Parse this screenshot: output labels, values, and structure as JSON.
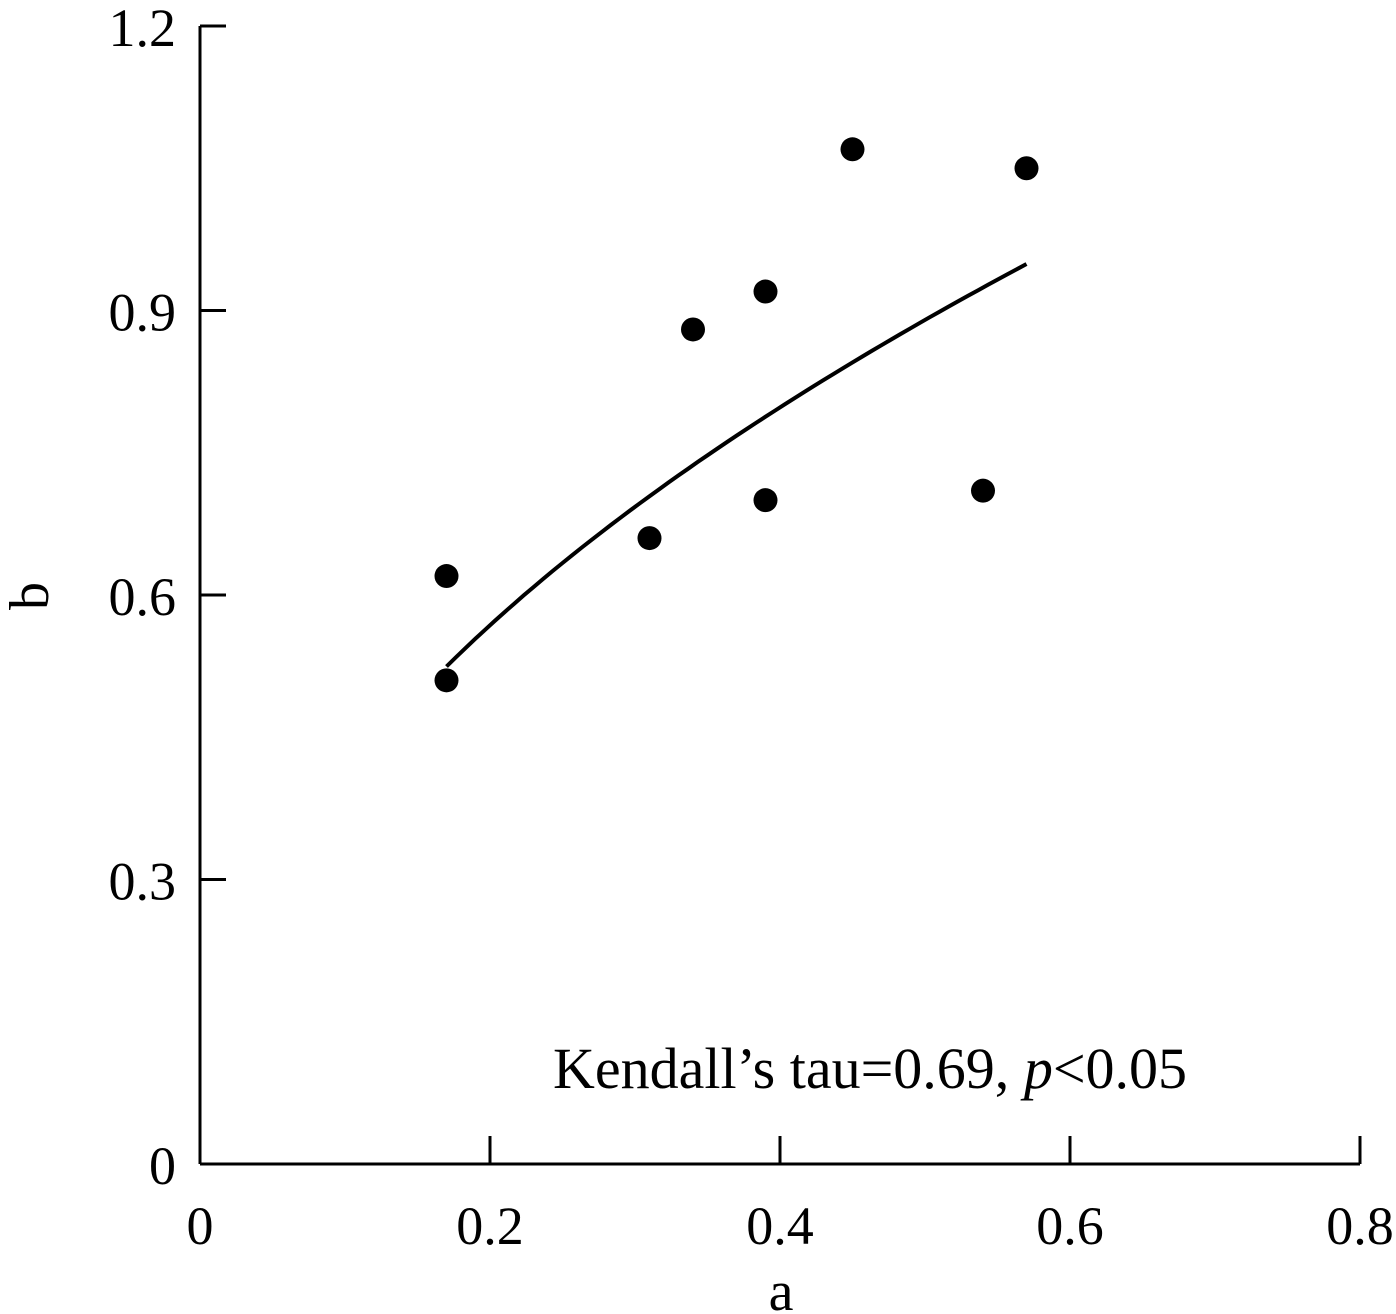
{
  "chart_data": {
    "type": "scatter",
    "title": "",
    "xlabel": "a",
    "ylabel": "b",
    "xlim": [
      0,
      0.8
    ],
    "ylim": [
      0,
      1.2
    ],
    "xticks": [
      0,
      0.2,
      0.4,
      0.6,
      0.8
    ],
    "xtick_labels": [
      "0",
      "0.2",
      "0.4",
      "0.6",
      "0.8"
    ],
    "yticks": [
      0,
      0.3,
      0.6,
      0.9,
      1.2
    ],
    "ytick_labels": [
      "0",
      "0.3",
      "0.6",
      "0.9",
      "1.2"
    ],
    "grid": false,
    "points": [
      {
        "x": 0.17,
        "y": 0.62
      },
      {
        "x": 0.17,
        "y": 0.51
      },
      {
        "x": 0.31,
        "y": 0.66
      },
      {
        "x": 0.34,
        "y": 0.88
      },
      {
        "x": 0.39,
        "y": 0.92
      },
      {
        "x": 0.39,
        "y": 0.7
      },
      {
        "x": 0.45,
        "y": 1.07
      },
      {
        "x": 0.54,
        "y": 0.71
      },
      {
        "x": 0.57,
        "y": 1.05
      }
    ],
    "fit_curve": {
      "model": "power",
      "coef": 1.25,
      "exponent": 0.49,
      "x_start": 0.17,
      "x_end": 0.57
    },
    "annotation": {
      "prefix": "Kendall’s tau=0.69, ",
      "italic": "p",
      "suffix": "<0.05"
    },
    "colors": {
      "marker": "#000000",
      "axis": "#000000",
      "curve": "#000000"
    }
  }
}
